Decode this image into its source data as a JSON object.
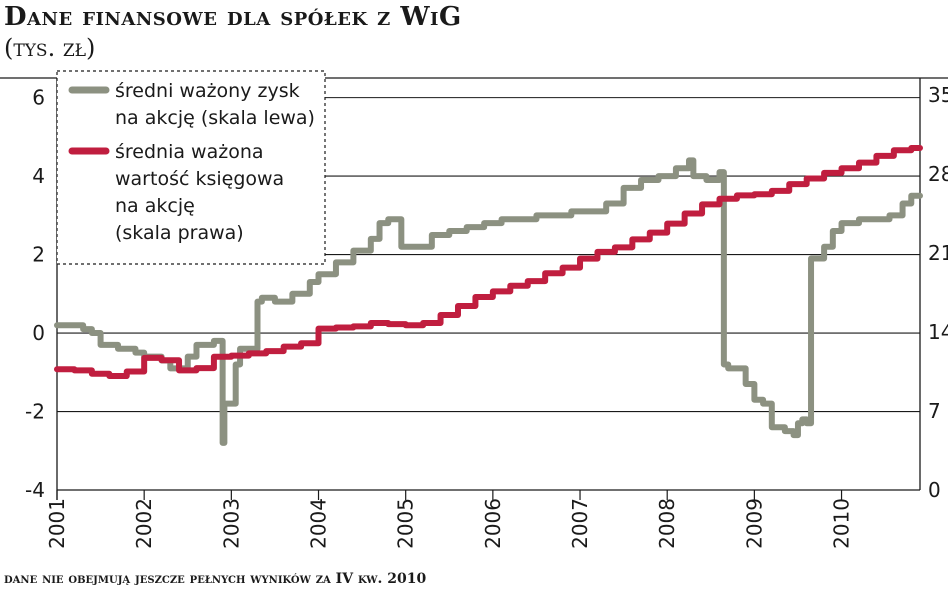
{
  "header": {
    "title": "Dane finansowe dla spółek z WiG",
    "subtitle": "(tys. zł)"
  },
  "footnote": "dane nie obejmują jeszcze pełnych wyników za IV kw. 2010",
  "colors": {
    "eps": "#8c9181",
    "bvps": "#c01e3f",
    "grid": "#1a1a1a",
    "text": "#1a1a1a"
  },
  "chart_data": {
    "type": "line",
    "title": "Dane finansowe dla spółek z WiG",
    "subtitle": "(tys. zł)",
    "x_ticks": [
      "2001",
      "2002",
      "2003",
      "2004",
      "2005",
      "2006",
      "2007",
      "2008",
      "2009",
      "2010"
    ],
    "xlim": [
      2001,
      2010.9
    ],
    "left_axis": {
      "ylim": [
        -4,
        6.5
      ],
      "ticks": [
        6,
        4,
        2,
        0,
        -2,
        -4
      ],
      "tick_labels": [
        "6",
        "4",
        "2",
        "0",
        "-2",
        "-4"
      ]
    },
    "right_axis": {
      "ylim": [
        0,
        36.5
      ],
      "ticks": [
        35,
        28,
        21,
        14,
        7,
        0
      ],
      "tick_labels": [
        "35",
        "28",
        "21",
        "14",
        "7",
        "0"
      ]
    },
    "grid": "horizontal",
    "legend_position": "top-left",
    "series": [
      {
        "name": "średni ważony zysk na akcję (skala lewa)",
        "legend_lines": [
          "średni ważony zysk",
          "na akcję (skala lewa)"
        ],
        "axis": "left",
        "x": [
          2001.0,
          2001.1,
          2001.3,
          2001.4,
          2001.5,
          2001.7,
          2001.9,
          2002.0,
          2002.2,
          2002.3,
          2002.5,
          2002.6,
          2002.8,
          2002.9,
          2002.92,
          2003.0,
          2003.05,
          2003.1,
          2003.2,
          2003.3,
          2003.35,
          2003.5,
          2003.7,
          2003.9,
          2004.0,
          2004.2,
          2004.4,
          2004.6,
          2004.7,
          2004.8,
          2004.95,
          2005.1,
          2005.3,
          2005.5,
          2005.7,
          2005.9,
          2006.1,
          2006.3,
          2006.5,
          2006.7,
          2006.9,
          2007.1,
          2007.3,
          2007.5,
          2007.7,
          2007.9,
          2008.1,
          2008.25,
          2008.3,
          2008.45,
          2008.6,
          2008.65,
          2008.7,
          2008.9,
          2009.0,
          2009.1,
          2009.2,
          2009.35,
          2009.45,
          2009.5,
          2009.55,
          2009.6,
          2009.65,
          2009.8,
          2009.9,
          2010.0,
          2010.2,
          2010.4,
          2010.55,
          2010.7,
          2010.8
        ],
        "values": [
          0.2,
          0.2,
          0.1,
          0.0,
          -0.3,
          -0.4,
          -0.5,
          -0.6,
          -0.7,
          -0.9,
          -0.6,
          -0.3,
          -0.2,
          -2.8,
          -1.8,
          -1.8,
          -0.8,
          -0.4,
          -0.4,
          0.8,
          0.9,
          0.8,
          1.0,
          1.3,
          1.5,
          1.8,
          2.1,
          2.4,
          2.8,
          2.9,
          2.2,
          2.2,
          2.5,
          2.6,
          2.7,
          2.8,
          2.9,
          2.9,
          3.0,
          3.0,
          3.1,
          3.1,
          3.3,
          3.7,
          3.9,
          4.0,
          4.2,
          4.4,
          4.0,
          3.9,
          4.1,
          -0.8,
          -0.9,
          -1.3,
          -1.7,
          -1.8,
          -2.4,
          -2.5,
          -2.6,
          -2.3,
          -2.2,
          -2.3,
          1.9,
          2.2,
          2.6,
          2.8,
          2.9,
          2.9,
          3.0,
          3.3,
          3.5
        ]
      },
      {
        "name": "średnia ważona wartość księgowa na akcję (skala prawa)",
        "legend_lines": [
          "średnia ważona",
          "wartość księgowa",
          "na akcję",
          "(skala prawa)"
        ],
        "axis": "right",
        "x": [
          2001.0,
          2001.2,
          2001.4,
          2001.6,
          2001.8,
          2002.0,
          2002.2,
          2002.4,
          2002.6,
          2002.8,
          2003.0,
          2003.2,
          2003.4,
          2003.6,
          2003.8,
          2004.0,
          2004.2,
          2004.4,
          2004.6,
          2004.8,
          2005.0,
          2005.2,
          2005.4,
          2005.6,
          2005.8,
          2006.0,
          2006.2,
          2006.4,
          2006.6,
          2006.8,
          2007.0,
          2007.2,
          2007.4,
          2007.6,
          2007.8,
          2008.0,
          2008.2,
          2008.4,
          2008.6,
          2008.8,
          2009.0,
          2009.2,
          2009.4,
          2009.6,
          2009.8,
          2010.0,
          2010.2,
          2010.4,
          2010.6,
          2010.8
        ],
        "values": [
          10.7,
          10.6,
          10.3,
          10.1,
          10.5,
          11.7,
          11.5,
          10.6,
          10.8,
          11.8,
          11.9,
          12.1,
          12.3,
          12.7,
          13.0,
          14.3,
          14.4,
          14.5,
          14.8,
          14.7,
          14.6,
          14.8,
          15.5,
          16.3,
          17.1,
          17.6,
          18.1,
          18.5,
          19.2,
          19.7,
          20.5,
          21.1,
          21.5,
          22.2,
          22.8,
          23.6,
          24.5,
          25.3,
          25.8,
          26.1,
          26.2,
          26.5,
          27.1,
          27.6,
          28.1,
          28.5,
          29.0,
          29.6,
          30.1,
          30.3
        ]
      }
    ]
  }
}
